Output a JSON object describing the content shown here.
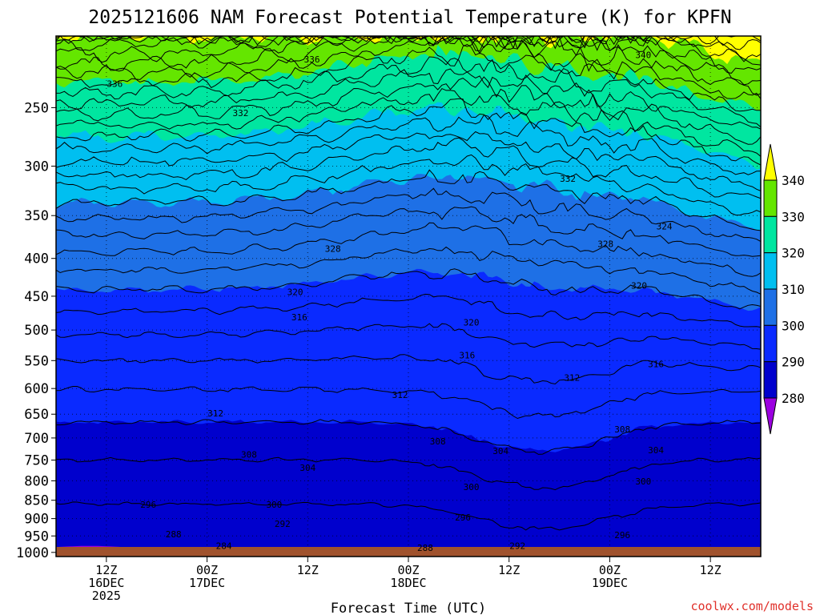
{
  "chart_data": {
    "type": "contour",
    "title": "2025121606 NAM Forecast Potential Temperature (K) for KPFN",
    "xlabel": "Forecast Time (UTC)",
    "ylabel": "",
    "credit": "coolwx.com/models",
    "x_range_hours": [
      0,
      84
    ],
    "y_range_hPa": [
      1013,
      200
    ],
    "y_ticks": [
      "250",
      "300",
      "350",
      "400",
      "450",
      "500",
      "550",
      "600",
      "650",
      "700",
      "750",
      "800",
      "850",
      "900",
      "950",
      "1000"
    ],
    "y_tick_values": [
      250,
      300,
      350,
      400,
      450,
      500,
      550,
      600,
      650,
      700,
      750,
      800,
      850,
      900,
      950,
      1000
    ],
    "x_ticks": [
      {
        "hour": 6,
        "line1": "12Z",
        "line2": "16DEC",
        "line3": "2025"
      },
      {
        "hour": 18,
        "line1": "00Z",
        "line2": "17DEC",
        "line3": ""
      },
      {
        "hour": 30,
        "line1": "12Z",
        "line2": "",
        "line3": ""
      },
      {
        "hour": 42,
        "line1": "00Z",
        "line2": "18DEC",
        "line3": ""
      },
      {
        "hour": 54,
        "line1": "12Z",
        "line2": "",
        "line3": ""
      },
      {
        "hour": 66,
        "line1": "00Z",
        "line2": "19DEC",
        "line3": ""
      },
      {
        "hour": 78,
        "line1": "12Z",
        "line2": "",
        "line3": ""
      }
    ],
    "colorbar": {
      "levels": [
        "280",
        "290",
        "300",
        "310",
        "320",
        "330",
        "340"
      ],
      "colors": [
        "#c800f0",
        "#7a1ae8",
        "#0000cd",
        "#0a00ff",
        "#1e64e6",
        "#00b4f0",
        "#00e6a0",
        "#64e600",
        "#ffff00"
      ]
    },
    "isentrope_interval_K": 2,
    "contour_labels": [
      {
        "value": "336",
        "hour": 30.5,
        "p": 215
      },
      {
        "value": "336",
        "hour": 7,
        "p": 232
      },
      {
        "value": "340",
        "hour": 70,
        "p": 212
      },
      {
        "value": "332",
        "hour": 22,
        "p": 254
      },
      {
        "value": "332",
        "hour": 61,
        "p": 312
      },
      {
        "value": "328",
        "hour": 33,
        "p": 388
      },
      {
        "value": "328",
        "hour": 65.5,
        "p": 382
      },
      {
        "value": "324",
        "hour": 72.5,
        "p": 362
      },
      {
        "value": "320",
        "hour": 28.5,
        "p": 444
      },
      {
        "value": "320",
        "hour": 49.5,
        "p": 488
      },
      {
        "value": "320",
        "hour": 69.5,
        "p": 435
      },
      {
        "value": "316",
        "hour": 29,
        "p": 480
      },
      {
        "value": "316",
        "hour": 49,
        "p": 541
      },
      {
        "value": "316",
        "hour": 71.5,
        "p": 556
      },
      {
        "value": "312",
        "hour": 19,
        "p": 648
      },
      {
        "value": "312",
        "hour": 41,
        "p": 612
      },
      {
        "value": "312",
        "hour": 61.5,
        "p": 580
      },
      {
        "value": "308",
        "hour": 23,
        "p": 737
      },
      {
        "value": "308",
        "hour": 45.5,
        "p": 707
      },
      {
        "value": "308",
        "hour": 67.5,
        "p": 681
      },
      {
        "value": "304",
        "hour": 30,
        "p": 768
      },
      {
        "value": "304",
        "hour": 53,
        "p": 729
      },
      {
        "value": "304",
        "hour": 71.5,
        "p": 727
      },
      {
        "value": "300",
        "hour": 26,
        "p": 861
      },
      {
        "value": "300",
        "hour": 49.5,
        "p": 815
      },
      {
        "value": "300",
        "hour": 70,
        "p": 801
      },
      {
        "value": "296",
        "hour": 11,
        "p": 861
      },
      {
        "value": "296",
        "hour": 48.5,
        "p": 896
      },
      {
        "value": "296",
        "hour": 67.5,
        "p": 947
      },
      {
        "value": "292",
        "hour": 27,
        "p": 914
      },
      {
        "value": "292",
        "hour": 55,
        "p": 980
      },
      {
        "value": "288",
        "hour": 14,
        "p": 945
      },
      {
        "value": "288",
        "hour": 44,
        "p": 986
      },
      {
        "value": "284",
        "hour": 20,
        "p": 980
      }
    ]
  }
}
